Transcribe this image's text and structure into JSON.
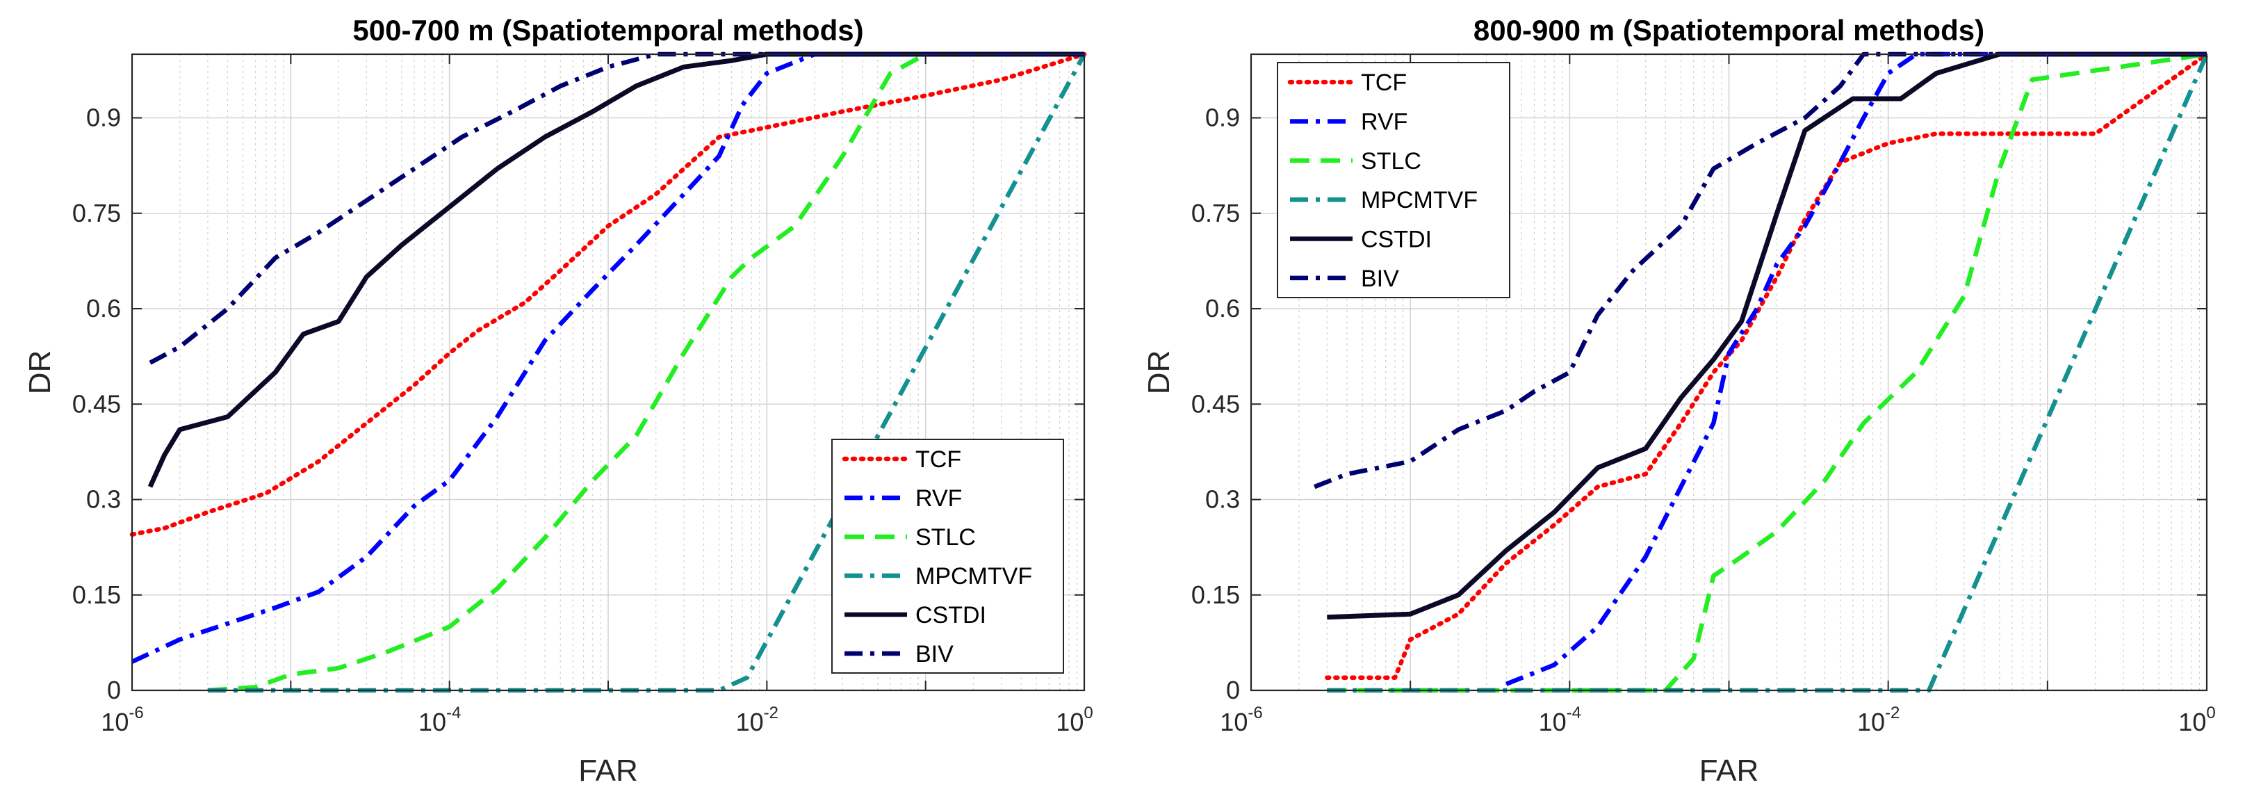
{
  "chart_data": [
    {
      "type": "line",
      "title": "500-700 m (Spatiotemporal methods)",
      "xlabel": "FAR",
      "ylabel": "DR",
      "xscale": "log",
      "xlim": [
        1e-06,
        1
      ],
      "ylim": [
        0,
        1
      ],
      "grid": true,
      "legend_position": "bottom-right",
      "xticks": [
        {
          "base": "10",
          "exp": "-6"
        },
        {
          "base": "10",
          "exp": "-4"
        },
        {
          "base": "10",
          "exp": "-2"
        },
        {
          "base": "10",
          "exp": "0"
        }
      ],
      "yticks": [
        "0",
        "0.15",
        "0.3",
        "0.45",
        "0.6",
        "0.75",
        "0.9"
      ],
      "series": [
        {
          "name": "TCF",
          "color": "#ff0000",
          "style": "dotted",
          "x": [
            1e-06,
            1.6e-06,
            3e-06,
            7e-06,
            1.5e-05,
            3e-05,
            6e-05,
            0.0001,
            0.00015,
            0.0003,
            0.0005,
            0.001,
            0.002,
            0.003,
            0.005,
            0.01,
            0.03,
            0.1,
            0.3,
            1
          ],
          "y": [
            0.245,
            0.255,
            0.28,
            0.31,
            0.36,
            0.42,
            0.48,
            0.53,
            0.565,
            0.61,
            0.66,
            0.73,
            0.78,
            0.82,
            0.87,
            0.885,
            0.91,
            0.935,
            0.96,
            1.0
          ]
        },
        {
          "name": "RVF",
          "color": "#0000ff",
          "style": "dashdot",
          "x": [
            1e-06,
            2e-06,
            4e-06,
            8e-06,
            1.5e-05,
            3e-05,
            6e-05,
            0.0001,
            0.0002,
            0.0004,
            0.0008,
            0.0015,
            0.003,
            0.005,
            0.007,
            0.01,
            0.02,
            0.05
          ],
          "y": [
            0.045,
            0.08,
            0.105,
            0.13,
            0.155,
            0.21,
            0.29,
            0.33,
            0.43,
            0.55,
            0.63,
            0.7,
            0.78,
            0.84,
            0.92,
            0.97,
            1.0,
            1.0
          ]
        },
        {
          "name": "STLC",
          "color": "#22ee22",
          "style": "dashed",
          "x": [
            3e-06,
            6e-06,
            1e-05,
            2e-05,
            4e-05,
            0.0001,
            0.0002,
            0.0004,
            0.0008,
            0.0015,
            0.003,
            0.006,
            0.008,
            0.015,
            0.03,
            0.06,
            0.1,
            1
          ],
          "y": [
            0.0,
            0.005,
            0.025,
            0.035,
            0.06,
            0.1,
            0.16,
            0.24,
            0.33,
            0.4,
            0.53,
            0.65,
            0.68,
            0.73,
            0.84,
            0.97,
            1.0,
            1.0
          ]
        },
        {
          "name": "MPCMTVF",
          "color": "#139090",
          "style": "dashdot",
          "x": [
            3e-06,
            0.005,
            0.0075,
            1
          ],
          "y": [
            0.0,
            0.0,
            0.02,
            1.0
          ]
        },
        {
          "name": "CSTDI",
          "color": "#0a0a28",
          "style": "solid",
          "x": [
            1.3e-06,
            1.6e-06,
            2e-06,
            4e-06,
            8e-06,
            1.2e-05,
            2e-05,
            3e-05,
            5e-05,
            0.0001,
            0.0002,
            0.0004,
            0.0008,
            0.0015,
            0.003,
            0.006,
            0.01,
            1
          ],
          "y": [
            0.32,
            0.37,
            0.41,
            0.43,
            0.5,
            0.56,
            0.58,
            0.65,
            0.7,
            0.76,
            0.82,
            0.87,
            0.91,
            0.95,
            0.98,
            0.99,
            1.0,
            1.0
          ]
        },
        {
          "name": "BIV",
          "color": "#000070",
          "style": "dashdot",
          "x": [
            1.3e-06,
            2e-06,
            4e-06,
            8e-06,
            1.5e-05,
            3e-05,
            6e-05,
            0.00012,
            0.00025,
            0.0005,
            0.001,
            0.002,
            0.003,
            0.005,
            1
          ],
          "y": [
            0.515,
            0.54,
            0.6,
            0.68,
            0.72,
            0.77,
            0.82,
            0.87,
            0.91,
            0.95,
            0.98,
            1.0,
            1.0,
            1.0,
            1.0
          ]
        }
      ]
    },
    {
      "type": "line",
      "title": "800-900 m (Spatiotemporal methods)",
      "xlabel": "FAR",
      "ylabel": "DR",
      "xscale": "log",
      "xlim": [
        1e-06,
        1
      ],
      "ylim": [
        0,
        1
      ],
      "grid": true,
      "legend_position": "top-left",
      "xticks": [
        {
          "base": "10",
          "exp": "-6"
        },
        {
          "base": "10",
          "exp": "-4"
        },
        {
          "base": "10",
          "exp": "-2"
        },
        {
          "base": "10",
          "exp": "0"
        }
      ],
      "yticks": [
        "0",
        "0.15",
        "0.3",
        "0.45",
        "0.6",
        "0.75",
        "0.9"
      ],
      "series": [
        {
          "name": "TCF",
          "color": "#ff0000",
          "style": "dotted",
          "x": [
            3e-06,
            8e-06,
            1e-05,
            2e-05,
            4e-05,
            8e-05,
            0.00015,
            0.0003,
            0.0005,
            0.0008,
            0.0012,
            0.002,
            0.003,
            0.005,
            0.01,
            0.02,
            0.2,
            1
          ],
          "y": [
            0.02,
            0.02,
            0.08,
            0.12,
            0.2,
            0.26,
            0.32,
            0.34,
            0.42,
            0.5,
            0.55,
            0.65,
            0.74,
            0.83,
            0.86,
            0.875,
            0.875,
            1.0
          ]
        },
        {
          "name": "RVF",
          "color": "#0000ff",
          "style": "dashdot",
          "x": [
            4e-05,
            8e-05,
            0.00015,
            0.0003,
            0.0005,
            0.0008,
            0.001,
            0.0015,
            0.002,
            0.003,
            0.005,
            0.007,
            0.01,
            0.015,
            0.03,
            1
          ],
          "y": [
            0.01,
            0.04,
            0.1,
            0.21,
            0.32,
            0.42,
            0.53,
            0.6,
            0.67,
            0.73,
            0.83,
            0.9,
            0.97,
            1.0,
            1.0,
            1.0
          ]
        },
        {
          "name": "STLC",
          "color": "#22ee22",
          "style": "dashed",
          "x": [
            3e-06,
            0.0004,
            0.0006,
            0.0008,
            0.0012,
            0.002,
            0.004,
            0.007,
            0.015,
            0.03,
            0.05,
            0.08,
            1
          ],
          "y": [
            0.0,
            0.0,
            0.05,
            0.18,
            0.21,
            0.25,
            0.33,
            0.42,
            0.5,
            0.62,
            0.82,
            0.96,
            1.0
          ]
        },
        {
          "name": "MPCMTVF",
          "color": "#139090",
          "style": "dashdot",
          "x": [
            3e-06,
            0.018,
            1
          ],
          "y": [
            0.0,
            0.0,
            1.0
          ]
        },
        {
          "name": "CSTDI",
          "color": "#0a0a28",
          "style": "solid",
          "x": [
            3e-06,
            1e-05,
            2e-05,
            4e-05,
            8e-05,
            0.00015,
            0.0003,
            0.0005,
            0.0008,
            0.0012,
            0.002,
            0.003,
            0.006,
            0.012,
            0.02,
            0.05,
            1
          ],
          "y": [
            0.115,
            0.12,
            0.15,
            0.22,
            0.28,
            0.35,
            0.38,
            0.46,
            0.52,
            0.58,
            0.75,
            0.88,
            0.93,
            0.93,
            0.97,
            1.0,
            1.0
          ]
        },
        {
          "name": "BIV",
          "color": "#000070",
          "style": "dashdot",
          "x": [
            2.5e-06,
            4e-06,
            1e-05,
            2e-05,
            4e-05,
            6e-05,
            0.0001,
            0.00015,
            0.00025,
            0.0005,
            0.0008,
            0.0015,
            0.003,
            0.005,
            0.007,
            1
          ],
          "y": [
            0.32,
            0.34,
            0.36,
            0.41,
            0.44,
            0.47,
            0.5,
            0.59,
            0.66,
            0.73,
            0.82,
            0.86,
            0.9,
            0.95,
            1.0,
            1.0
          ]
        }
      ]
    }
  ]
}
